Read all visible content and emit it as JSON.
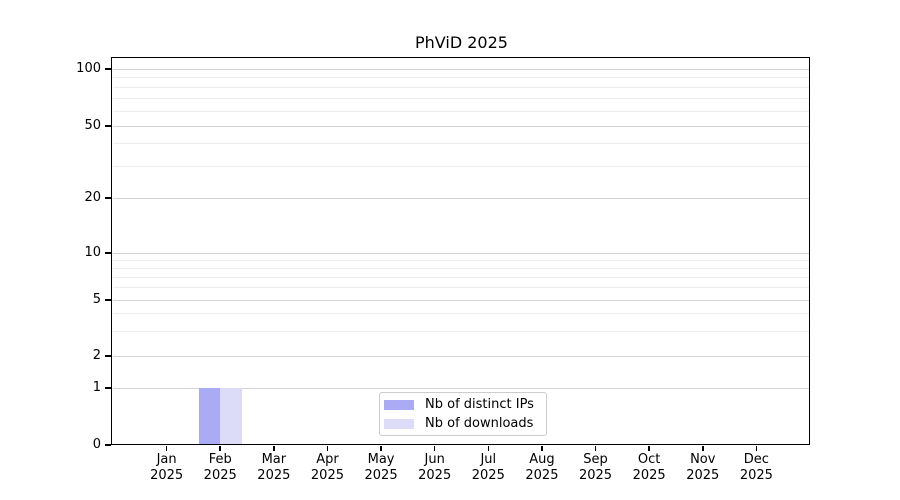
{
  "chart_data": {
    "type": "bar",
    "title": "PhViD 2025",
    "categories": [
      "Jan 2025",
      "Feb 2025",
      "Mar 2025",
      "Apr 2025",
      "May 2025",
      "Jun 2025",
      "Jul 2025",
      "Aug 2025",
      "Sep 2025",
      "Oct 2025",
      "Nov 2025",
      "Dec 2025"
    ],
    "series": [
      {
        "name": "Nb of distinct IPs",
        "color": "#aaaaf5",
        "values": [
          0,
          1,
          0,
          0,
          0,
          0,
          0,
          0,
          0,
          0,
          0,
          0
        ]
      },
      {
        "name": "Nb of downloads",
        "color": "#dcdcf9",
        "values": [
          0,
          1,
          0,
          0,
          0,
          0,
          0,
          0,
          0,
          0,
          0,
          0
        ]
      }
    ],
    "xlabel": "",
    "ylabel": "",
    "yaxis": {
      "scale": "log-like, linear below 1",
      "major_ticks": [
        0,
        1,
        2,
        5,
        10,
        20,
        50,
        100
      ],
      "minor_gridlines": [
        3,
        4,
        6,
        7,
        8,
        9,
        30,
        40,
        60,
        70,
        80,
        90
      ],
      "range": [
        0,
        110
      ]
    },
    "grid": "on",
    "legend": {
      "position": "lower center inside plot"
    },
    "colors": {
      "major_grid": "#d2d2d2",
      "minor_grid": "#ededed",
      "spine": "#000000",
      "background": "#ffffff",
      "text": "#000000"
    }
  }
}
